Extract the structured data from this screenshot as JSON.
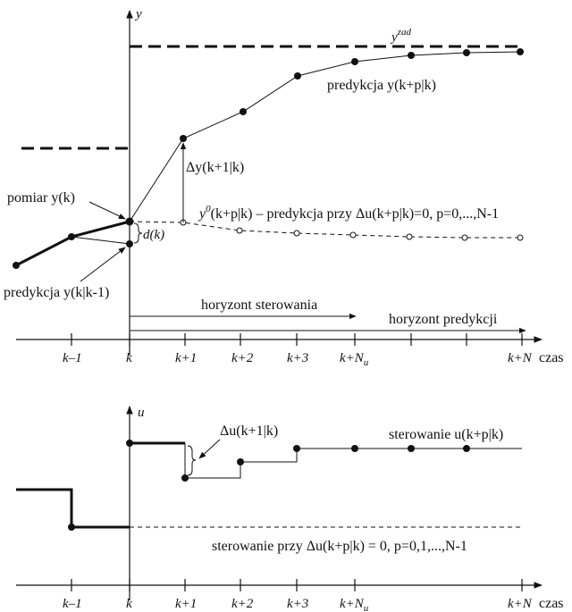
{
  "top": {
    "y_axis": "y",
    "setpoint": "y",
    "setpoint_sup": "zad",
    "prediction": "predykcja y(k+p|k)",
    "delta_y": "Δy(k+1|k)",
    "measurement": "pomiar y(k)",
    "free_prefix": "y",
    "free_sup": "0",
    "free_text": "(k+p|k) – predykcja przy Δu(k+p|k)=0,  p=0,...,N-1",
    "disturbance": "d(k)",
    "prev_prediction": "predykcja y(k|k-1)",
    "control_horizon": "horyzont sterowania",
    "prediction_horizon": "horyzont predykcji",
    "ticks": [
      "k–1",
      "k",
      "k+1",
      "k+2",
      "k+3",
      "k+N",
      "k+N"
    ],
    "tick_subscript": "u",
    "time_label": "czas"
  },
  "bottom": {
    "u_axis": "u",
    "delta_u": "Δu(k+1|k)",
    "control": "sterowanie u(k+p|k)",
    "zero_control": "sterowanie przy Δu(k+p|k) = 0,  p=0,1,...,N-1",
    "ticks": [
      "k–1",
      "k",
      "k+1",
      "k+2",
      "k+3",
      "k+N",
      "k+N"
    ],
    "tick_subscript": "u",
    "time_label": "czas"
  }
}
